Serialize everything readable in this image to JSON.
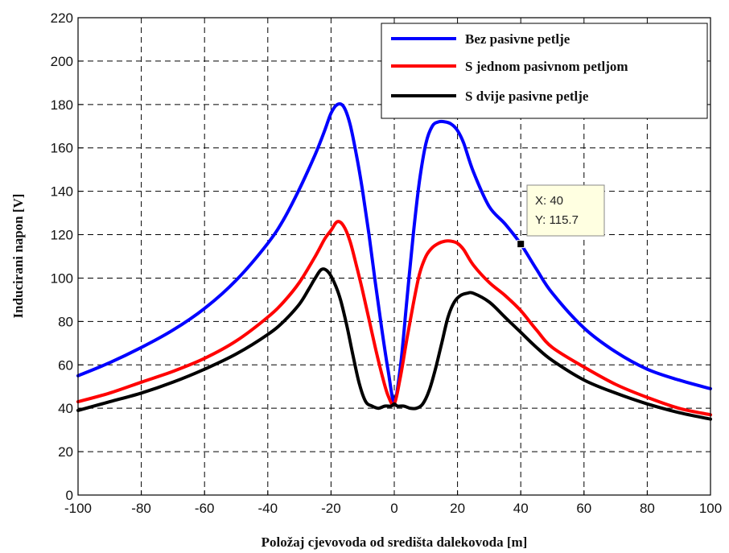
{
  "chart_data": {
    "type": "line",
    "xlabel": "Položaj cjevovoda od središta dalekovoda [m]",
    "ylabel": "Inducirani napon [V]",
    "xlim": [
      -100,
      100
    ],
    "ylim": [
      0,
      220
    ],
    "xticks": [
      -100,
      -80,
      -60,
      -40,
      -20,
      0,
      20,
      40,
      60,
      80,
      100
    ],
    "yticks": [
      0,
      20,
      40,
      60,
      80,
      100,
      120,
      140,
      160,
      180,
      200,
      220
    ],
    "grid": true,
    "legend_position": "top-right",
    "series": [
      {
        "name": "Bez pasivne petlje",
        "color": "#0000ff",
        "x": [
          -100,
          -90,
          -80,
          -70,
          -60,
          -50,
          -40,
          -35,
          -30,
          -25,
          -22,
          -20,
          -18,
          -16,
          -14,
          -12,
          -10,
          -8,
          -6,
          -4,
          -2,
          0,
          2,
          4,
          6,
          8,
          10,
          12,
          14,
          16,
          18,
          20,
          22,
          25,
          30,
          35,
          40,
          45,
          50,
          60,
          70,
          80,
          90,
          100
        ],
        "y": [
          55,
          61,
          68,
          76,
          86,
          99,
          116,
          127,
          141,
          157,
          168,
          176,
          180,
          179,
          171,
          157,
          140,
          120,
          98,
          77,
          58,
          43,
          60,
          90,
          120,
          145,
          162,
          170,
          172,
          172,
          171,
          168,
          162,
          149,
          133,
          125,
          115.7,
          104,
          93,
          77,
          66,
          58,
          53,
          49
        ]
      },
      {
        "name": "S jednom pasivnom petljom",
        "color": "#ff0000",
        "x": [
          -100,
          -90,
          -80,
          -70,
          -60,
          -50,
          -40,
          -35,
          -30,
          -25,
          -22,
          -20,
          -18,
          -16,
          -14,
          -12,
          -10,
          -8,
          -6,
          -4,
          -2,
          0,
          2,
          4,
          6,
          8,
          10,
          12,
          14,
          16,
          18,
          20,
          22,
          25,
          30,
          35,
          40,
          45,
          50,
          60,
          70,
          80,
          90,
          100
        ],
        "y": [
          43,
          47,
          52,
          57,
          63,
          71,
          82,
          89,
          98,
          110,
          118,
          122,
          126,
          124,
          117,
          106,
          94,
          81,
          68,
          56,
          46,
          42,
          55,
          72,
          88,
          102,
          110,
          114,
          116,
          117,
          117,
          116,
          113,
          106,
          98,
          92,
          85,
          76,
          68,
          59,
          51,
          45,
          40,
          37
        ]
      },
      {
        "name": "S dvije pasivne petlje",
        "color": "#000000",
        "x": [
          -100,
          -90,
          -80,
          -70,
          -60,
          -50,
          -40,
          -35,
          -30,
          -27,
          -25,
          -23,
          -21,
          -19,
          -17,
          -15,
          -13,
          -11,
          -9,
          -7,
          -5,
          -3,
          -1,
          0,
          1,
          3,
          5,
          7,
          9,
          11,
          13,
          15,
          17,
          19,
          21,
          23,
          25,
          30,
          35,
          40,
          45,
          50,
          60,
          70,
          80,
          90,
          100
        ],
        "y": [
          39,
          43,
          47,
          52,
          58,
          65,
          74,
          80,
          88,
          95,
          100,
          104,
          103,
          98,
          90,
          78,
          64,
          51,
          43,
          41,
          40,
          41,
          41,
          42,
          41,
          41,
          40,
          40,
          42,
          48,
          58,
          70,
          82,
          89,
          92,
          93,
          93,
          89,
          82,
          75,
          68,
          62,
          53,
          47,
          42,
          38,
          35
        ]
      }
    ],
    "annotation": {
      "x": 40,
      "y": 115.7,
      "label_x": "X: 40",
      "label_y": "Y: 115.7"
    }
  }
}
